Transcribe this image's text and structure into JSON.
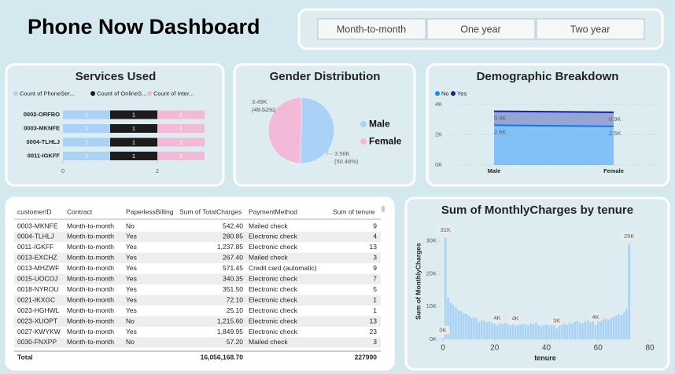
{
  "header": {
    "title": "Phone Now Dashboard"
  },
  "filters": [
    "Month-to-month",
    "One year",
    "Two year"
  ],
  "table": {
    "columns": [
      "customerID",
      "Contract",
      "PaperlessBilling",
      "Sum of TotalCharges",
      "PaymentMethod",
      "Sum of tenure"
    ],
    "rows": [
      [
        "0003-MKNFE",
        "Month-to-month",
        "No",
        "542.40",
        "Mailed check",
        "9"
      ],
      [
        "0004-TLHLJ",
        "Month-to-month",
        "Yes",
        "280.85",
        "Electronic check",
        "4"
      ],
      [
        "0011-IGKFF",
        "Month-to-month",
        "Yes",
        "1,237.85",
        "Electronic check",
        "13"
      ],
      [
        "0013-EXCHZ",
        "Month-to-month",
        "Yes",
        "267.40",
        "Mailed check",
        "3"
      ],
      [
        "0013-MHZWF",
        "Month-to-month",
        "Yes",
        "571.45",
        "Credit card (automatic)",
        "9"
      ],
      [
        "0015-UOCOJ",
        "Month-to-month",
        "Yes",
        "340.35",
        "Electronic check",
        "7"
      ],
      [
        "0018-NYROU",
        "Month-to-month",
        "Yes",
        "351.50",
        "Electronic check",
        "5"
      ],
      [
        "0021-IKXGC",
        "Month-to-month",
        "Yes",
        "72.10",
        "Electronic check",
        "1"
      ],
      [
        "0023-HGHWL",
        "Month-to-month",
        "Yes",
        "25.10",
        "Electronic check",
        "1"
      ],
      [
        "0023-XUOPT",
        "Month-to-month",
        "No",
        "1,215.60",
        "Electronic check",
        "13"
      ],
      [
        "0027-KWYKW",
        "Month-to-month",
        "Yes",
        "1,849.95",
        "Electronic check",
        "23"
      ],
      [
        "0030-FNXPP",
        "Month-to-month",
        "No",
        "57.20",
        "Mailed check",
        "3"
      ]
    ],
    "total": [
      "Total",
      null,
      null,
      "16,056,168.70",
      null,
      "227990"
    ]
  },
  "chart_data": [
    {
      "type": "stacked-hbar",
      "title": "Services Used",
      "categories": [
        "0002-ORFBO",
        "0003-MKNFE",
        "0004-TLHLJ",
        "0011-IGKFF"
      ],
      "series": [
        {
          "name": "Count of PhoneSer...",
          "color": "#a9d2f6",
          "values": [
            1,
            1,
            1,
            1
          ]
        },
        {
          "name": "Count of OnlineS...",
          "color": "#1c1c1c",
          "values": [
            1,
            1,
            1,
            1
          ]
        },
        {
          "name": "Count of Inter...",
          "color": "#f3b9d9",
          "values": [
            1,
            1,
            1,
            1
          ]
        }
      ],
      "xlim": [
        0,
        3
      ],
      "xticks": [
        0,
        2
      ]
    },
    {
      "type": "pie",
      "title": "Gender Distribution",
      "categories": [
        "Male",
        "Female"
      ],
      "values": [
        3555,
        3488
      ],
      "value_labels": [
        "3.56K",
        "3.49K"
      ],
      "percent_labels": [
        "(50.48%)",
        "(49.52%)"
      ],
      "colors": [
        "#a9d2f6",
        "#f3b9d9"
      ]
    },
    {
      "type": "stacked-area",
      "title": "Demographic Breakdown",
      "categories": [
        "Male",
        "Female"
      ],
      "series": [
        {
          "name": "No",
          "color": "#118dff",
          "values": [
            2630,
            2549
          ],
          "value_labels": [
            "2.6K",
            "2.5K"
          ]
        },
        {
          "name": "Yes",
          "color": "#12239e",
          "values": [
            925,
            939
          ],
          "value_labels": [
            "0.9K",
            "0.9K"
          ]
        }
      ],
      "ylim": [
        0,
        4000
      ],
      "yticks": [
        {
          "value": 0,
          "label": "0K"
        },
        {
          "value": 2000,
          "label": "2K"
        },
        {
          "value": 4000,
          "label": "4K"
        }
      ],
      "grid": true
    },
    {
      "type": "column",
      "title": "Sum of MonthlyCharges by tenure",
      "xlabel": "tenure",
      "ylabel": "Sum of MonthlyCharges",
      "color": "#a9d2f6",
      "x": [
        0,
        1,
        2,
        3,
        4,
        5,
        6,
        7,
        8,
        9,
        10,
        11,
        12,
        13,
        14,
        15,
        16,
        17,
        18,
        19,
        20,
        21,
        22,
        23,
        24,
        25,
        26,
        27,
        28,
        29,
        30,
        31,
        32,
        33,
        34,
        35,
        36,
        37,
        38,
        39,
        40,
        41,
        42,
        43,
        44,
        45,
        46,
        47,
        48,
        49,
        50,
        51,
        52,
        53,
        54,
        55,
        56,
        57,
        58,
        59,
        60,
        61,
        62,
        63,
        64,
        65,
        66,
        67,
        68,
        69,
        70,
        71,
        72
      ],
      "values": [
        455,
        31000,
        12800,
        11200,
        10500,
        9600,
        8900,
        8600,
        8000,
        7800,
        7200,
        6600,
        6900,
        6400,
        5300,
        5800,
        5600,
        5200,
        5400,
        5100,
        4800,
        4200,
        4900,
        4500,
        5000,
        4700,
        4300,
        4600,
        4100,
        4400,
        4500,
        4800,
        4600,
        4200,
        4900,
        4700,
        5100,
        4300,
        4000,
        4400,
        4500,
        4200,
        4600,
        4300,
        3300,
        4100,
        4500,
        4800,
        4300,
        5000,
        4700,
        5300,
        5600,
        5100,
        5000,
        5400,
        5800,
        5200,
        5500,
        4400,
        5900,
        5700,
        6100,
        6300,
        6000,
        6500,
        6900,
        7200,
        7600,
        7400,
        8000,
        9300,
        29000
      ],
      "value_labels": [
        "0K",
        "31K",
        null,
        null,
        null,
        null,
        null,
        null,
        null,
        null,
        null,
        null,
        null,
        null,
        null,
        null,
        null,
        null,
        null,
        null,
        null,
        "4K",
        null,
        null,
        null,
        null,
        null,
        null,
        "4K",
        null,
        null,
        null,
        null,
        null,
        null,
        null,
        null,
        null,
        null,
        null,
        null,
        null,
        null,
        null,
        "3K",
        null,
        null,
        null,
        null,
        null,
        null,
        null,
        null,
        null,
        null,
        null,
        null,
        null,
        null,
        "4K",
        null,
        null,
        null,
        null,
        null,
        null,
        null,
        null,
        null,
        null,
        null,
        null,
        "29K"
      ],
      "xlim": [
        -1,
        80
      ],
      "xticks": [
        0,
        20,
        40,
        60,
        80
      ],
      "ylim": [
        0,
        33000
      ],
      "yticks": [
        {
          "value": 0,
          "label": "0K"
        },
        {
          "value": 10000,
          "label": "10K"
        },
        {
          "value": 20000,
          "label": "20K"
        },
        {
          "value": 30000,
          "label": "30K"
        }
      ]
    }
  ]
}
